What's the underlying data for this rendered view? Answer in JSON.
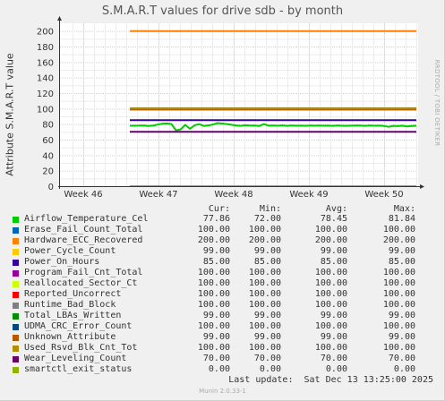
{
  "chart_data": {
    "type": "line",
    "title": "S.M.A.R.T values for drive sdb - by month",
    "ylabel": "Attribute S.M.A.R.T value",
    "vendor_label": "RRDTOOL / TOBI OETIKER",
    "ylim": [
      0,
      210
    ],
    "y_ticks": [
      0,
      20,
      40,
      60,
      80,
      100,
      120,
      140,
      160,
      180,
      200
    ],
    "x_ticks": [
      "Week 46",
      "Week 47",
      "Week 48",
      "Week 49",
      "Week 50"
    ],
    "grid": true,
    "series": [
      {
        "name": "Airflow_Temperature_Cel",
        "color": "#00cc00",
        "values": [
          77.9,
          77.9,
          78.0,
          78.2,
          77.6,
          78.0,
          79.4,
          80.5,
          80.9,
          80.1,
          72.0,
          73.2,
          79.0,
          74.0,
          78.5,
          80.0,
          77.6,
          78.4,
          79.5,
          81.3,
          80.8,
          80.1,
          79.1,
          78.2,
          77.8,
          78.6,
          78.0,
          78.2,
          77.5,
          80.1,
          78.0,
          78.1,
          77.9,
          78.3,
          77.8,
          78.1,
          77.9,
          78.0,
          77.8,
          78.1,
          77.9,
          78.2,
          77.9,
          78.0,
          77.8,
          78.1,
          77.9,
          77.8,
          78.0,
          78.2,
          78.0,
          77.8,
          78.2,
          77.9,
          78.0,
          77.6,
          76.5,
          77.8,
          77.4,
          77.9,
          77.0,
          77.6,
          77.86
        ]
      },
      {
        "name": "Erase_Fail_Count_Total",
        "color": "#0066b3",
        "values": [
          100,
          100
        ]
      },
      {
        "name": "Hardware_ECC_Recovered",
        "color": "#ff8000",
        "values": [
          200,
          200
        ]
      },
      {
        "name": "Power_Cycle_Count",
        "color": "#ffcc00",
        "values": [
          99,
          99
        ]
      },
      {
        "name": "Power_On_Hours",
        "color": "#330099",
        "values": [
          85,
          85
        ]
      },
      {
        "name": "Program_Fail_Cnt_Total",
        "color": "#990099",
        "values": [
          100,
          100
        ]
      },
      {
        "name": "Reallocated_Sector_Ct",
        "color": "#ccff00",
        "values": [
          100,
          100
        ]
      },
      {
        "name": "Reported_Uncorrect",
        "color": "#ff0000",
        "values": [
          100,
          100
        ]
      },
      {
        "name": "Runtime_Bad_Block",
        "color": "#808080",
        "values": [
          100,
          100
        ]
      },
      {
        "name": "Total_LBAs_Written",
        "color": "#008f00",
        "values": [
          99,
          99
        ]
      },
      {
        "name": "UDMA_CRC_Error_Count",
        "color": "#00487d",
        "values": [
          100,
          100
        ]
      },
      {
        "name": "Unknown_Attribute",
        "color": "#b35a00",
        "values": [
          99,
          99
        ]
      },
      {
        "name": "Used_Rsvd_Blk_Cnt_Tot",
        "color": "#b38f00",
        "values": [
          100,
          100
        ]
      },
      {
        "name": "Wear_Leveling_Count",
        "color": "#6b006b",
        "values": [
          70,
          70
        ]
      },
      {
        "name": "smartctl_exit_status",
        "color": "#8fb300",
        "values": [
          0,
          0
        ]
      }
    ]
  },
  "legend": {
    "headers": {
      "cur": "Cur:",
      "min": "Min:",
      "avg": "Avg:",
      "max": "Max:"
    },
    "rows": [
      {
        "name": "Airflow_Temperature_Cel",
        "color": "#00cc00",
        "cur": "77.86",
        "min": "72.00",
        "avg": "78.45",
        "max": "81.84"
      },
      {
        "name": "Erase_Fail_Count_Total",
        "color": "#0066b3",
        "cur": "100.00",
        "min": "100.00",
        "avg": "100.00",
        "max": "100.00"
      },
      {
        "name": "Hardware_ECC_Recovered",
        "color": "#ff8000",
        "cur": "200.00",
        "min": "200.00",
        "avg": "200.00",
        "max": "200.00"
      },
      {
        "name": "Power_Cycle_Count",
        "color": "#ffcc00",
        "cur": "99.00",
        "min": "99.00",
        "avg": "99.00",
        "max": "99.00"
      },
      {
        "name": "Power_On_Hours",
        "color": "#330099",
        "cur": "85.00",
        "min": "85.00",
        "avg": "85.00",
        "max": "85.00"
      },
      {
        "name": "Program_Fail_Cnt_Total",
        "color": "#990099",
        "cur": "100.00",
        "min": "100.00",
        "avg": "100.00",
        "max": "100.00"
      },
      {
        "name": "Reallocated_Sector_Ct",
        "color": "#ccff00",
        "cur": "100.00",
        "min": "100.00",
        "avg": "100.00",
        "max": "100.00"
      },
      {
        "name": "Reported_Uncorrect",
        "color": "#ff0000",
        "cur": "100.00",
        "min": "100.00",
        "avg": "100.00",
        "max": "100.00"
      },
      {
        "name": "Runtime_Bad_Block",
        "color": "#808080",
        "cur": "100.00",
        "min": "100.00",
        "avg": "100.00",
        "max": "100.00"
      },
      {
        "name": "Total_LBAs_Written",
        "color": "#008f00",
        "cur": "99.00",
        "min": "99.00",
        "avg": "99.00",
        "max": "99.00"
      },
      {
        "name": "UDMA_CRC_Error_Count",
        "color": "#00487d",
        "cur": "100.00",
        "min": "100.00",
        "avg": "100.00",
        "max": "100.00"
      },
      {
        "name": "Unknown_Attribute",
        "color": "#b35a00",
        "cur": "99.00",
        "min": "99.00",
        "avg": "99.00",
        "max": "99.00"
      },
      {
        "name": "Used_Rsvd_Blk_Cnt_Tot",
        "color": "#b38f00",
        "cur": "100.00",
        "min": "100.00",
        "avg": "100.00",
        "max": "100.00"
      },
      {
        "name": "Wear_Leveling_Count",
        "color": "#6b006b",
        "cur": "70.00",
        "min": "70.00",
        "avg": "70.00",
        "max": "70.00"
      },
      {
        "name": "smartctl_exit_status",
        "color": "#8fb300",
        "cur": "0.00",
        "min": "0.00",
        "avg": "0.00",
        "max": "0.00"
      }
    ]
  },
  "footer": {
    "last_update": "Last update:  Sat Dec 13 13:25:00 2025",
    "version": "Munin 2.0.33-1"
  }
}
